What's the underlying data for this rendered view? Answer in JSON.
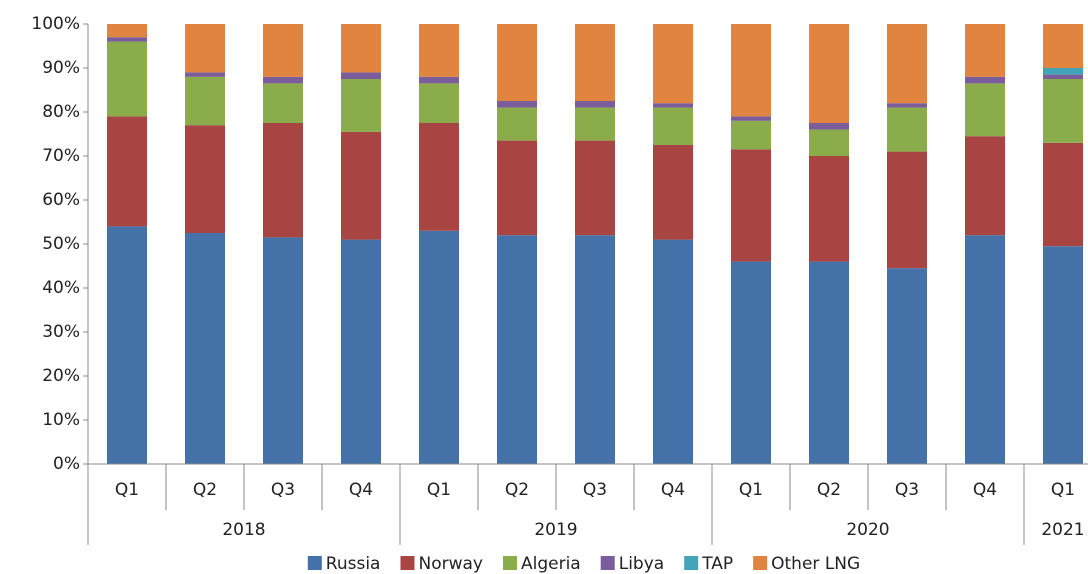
{
  "chart_data": {
    "type": "bar",
    "stacked": true,
    "groups": [
      {
        "label": "2018",
        "categories": [
          "Q1",
          "Q2",
          "Q3",
          "Q4"
        ]
      },
      {
        "label": "2019",
        "categories": [
          "Q1",
          "Q2",
          "Q3",
          "Q4"
        ]
      },
      {
        "label": "2020",
        "categories": [
          "Q1",
          "Q2",
          "Q3",
          "Q4"
        ]
      },
      {
        "label": "2021",
        "categories": [
          "Q1"
        ]
      }
    ],
    "series": [
      {
        "name": "Russia",
        "color": "#4472a8",
        "values": [
          54,
          52.5,
          51.5,
          51,
          53,
          52,
          52,
          51,
          46,
          46,
          44.5,
          52,
          49.5
        ]
      },
      {
        "name": "Norway",
        "color": "#a84543",
        "values": [
          25,
          24.5,
          26,
          24.5,
          24.5,
          21.5,
          21.5,
          21.5,
          25.5,
          24,
          26.5,
          22.5,
          23.5
        ]
      },
      {
        "name": "Algeria",
        "color": "#8bac4b",
        "values": [
          17,
          11,
          9,
          12,
          9,
          7.5,
          7.5,
          8.5,
          6.5,
          6,
          10,
          12,
          14.5
        ]
      },
      {
        "name": "Libya",
        "color": "#7b5d9b",
        "values": [
          1,
          1,
          1.5,
          1.5,
          1.5,
          1.5,
          1.5,
          1,
          1,
          1.5,
          1,
          1.5,
          1
        ]
      },
      {
        "name": "TAP",
        "color": "#43a3b9",
        "values": [
          0,
          0,
          0,
          0,
          0,
          0,
          0,
          0,
          0,
          0,
          0,
          0,
          1.5
        ]
      },
      {
        "name": "Other LNG",
        "color": "#e0843f",
        "values": [
          3,
          11,
          12,
          11,
          12,
          17.5,
          17.5,
          18,
          21,
          22.5,
          18,
          12,
          10
        ]
      }
    ],
    "ylim": [
      0,
      100
    ],
    "yticks": [
      {
        "value": 0,
        "label": "0%"
      },
      {
        "value": 10,
        "label": "10%"
      },
      {
        "value": 20,
        "label": "20%"
      },
      {
        "value": 30,
        "label": "30%"
      },
      {
        "value": 40,
        "label": "40%"
      },
      {
        "value": 50,
        "label": "50%"
      },
      {
        "value": 60,
        "label": "60%"
      },
      {
        "value": 70,
        "label": "70%"
      },
      {
        "value": 80,
        "label": "80%"
      },
      {
        "value": 90,
        "label": "90%"
      },
      {
        "value": 100,
        "label": "100%"
      }
    ],
    "grid": false,
    "legend": "bottom"
  }
}
